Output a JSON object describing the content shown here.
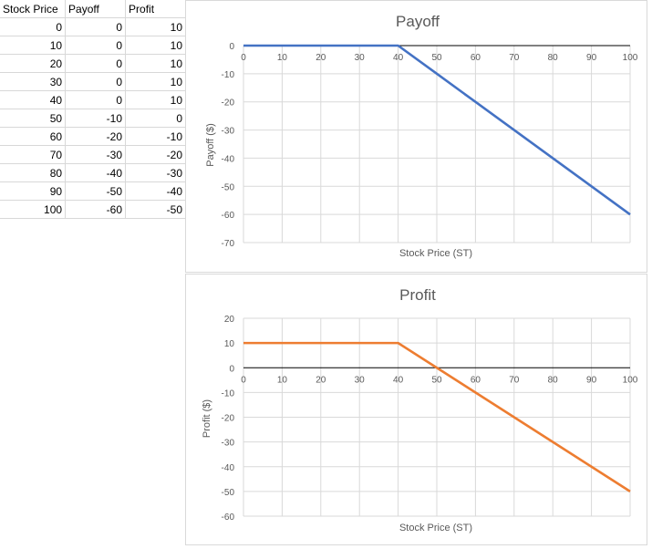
{
  "table": {
    "headers": [
      "Stock Price",
      "Payoff",
      "Profit"
    ],
    "rows": [
      [
        "0",
        "0",
        "10"
      ],
      [
        "10",
        "0",
        "10"
      ],
      [
        "20",
        "0",
        "10"
      ],
      [
        "30",
        "0",
        "10"
      ],
      [
        "40",
        "0",
        "10"
      ],
      [
        "50",
        "-10",
        "0"
      ],
      [
        "60",
        "-20",
        "-10"
      ],
      [
        "70",
        "-30",
        "-20"
      ],
      [
        "80",
        "-40",
        "-30"
      ],
      [
        "90",
        "-50",
        "-40"
      ],
      [
        "100",
        "-60",
        "-50"
      ]
    ]
  },
  "chart_data": [
    {
      "type": "line",
      "title": "Payoff",
      "xlabel": "Stock Price (ST)",
      "ylabel": "Payoff ($)",
      "x": [
        0,
        10,
        20,
        30,
        40,
        50,
        60,
        70,
        80,
        90,
        100
      ],
      "series": [
        {
          "values": [
            0,
            0,
            0,
            0,
            0,
            -10,
            -20,
            -30,
            -40,
            -50,
            -60
          ],
          "color": "#4472C4"
        }
      ],
      "xlim": [
        0,
        100
      ],
      "ylim": [
        -70,
        0
      ],
      "xticks": [
        0,
        10,
        20,
        30,
        40,
        50,
        60,
        70,
        80,
        90,
        100
      ],
      "yticks": [
        0,
        -10,
        -20,
        -30,
        -40,
        -50,
        -60,
        -70
      ],
      "grid": true
    },
    {
      "type": "line",
      "title": "Profit",
      "xlabel": "Stock Price (ST)",
      "ylabel": "Profit ($)",
      "x": [
        0,
        10,
        20,
        30,
        40,
        50,
        60,
        70,
        80,
        90,
        100
      ],
      "series": [
        {
          "values": [
            10,
            10,
            10,
            10,
            10,
            0,
            -10,
            -20,
            -30,
            -40,
            -50
          ],
          "color": "#ED7D31"
        }
      ],
      "xlim": [
        0,
        100
      ],
      "ylim": [
        -60,
        20
      ],
      "xticks": [
        0,
        10,
        20,
        30,
        40,
        50,
        60,
        70,
        80,
        90,
        100
      ],
      "yticks": [
        20,
        10,
        0,
        -10,
        -20,
        -30,
        -40,
        -50,
        -60
      ],
      "grid": true
    }
  ]
}
